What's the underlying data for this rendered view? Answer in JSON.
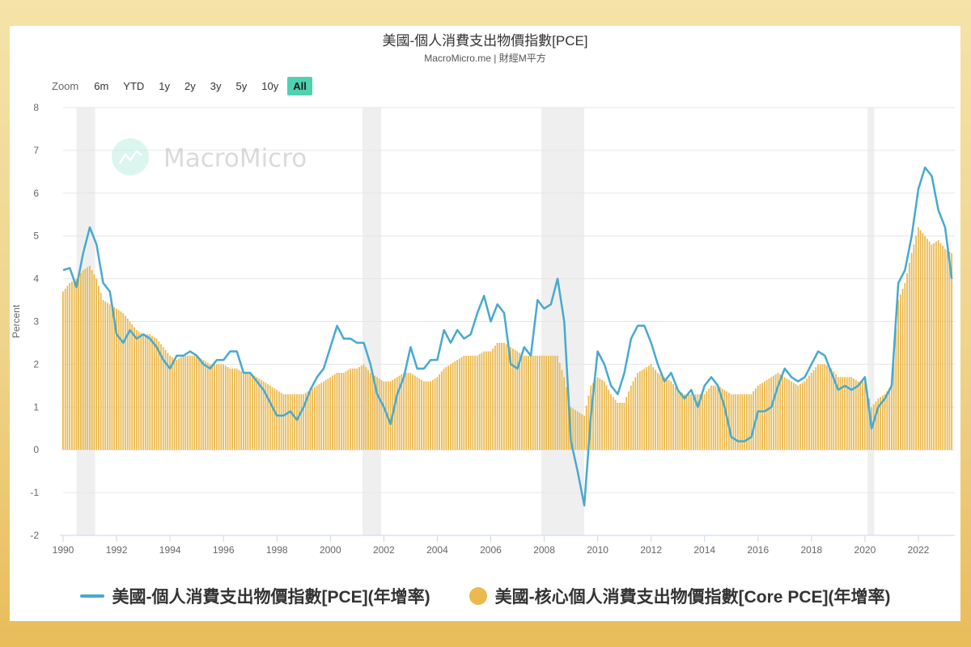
{
  "header": {
    "title": "美國-個人消費支出物價指數[PCE]",
    "subtitle": "MacroMicro.me | 財經M平方"
  },
  "zoom": {
    "label": "Zoom",
    "buttons": [
      "6m",
      "YTD",
      "1y",
      "2y",
      "3y",
      "5y",
      "10y",
      "All"
    ],
    "active": "All"
  },
  "watermark": {
    "text": "MacroMicro",
    "icon": "macromicro-logo-icon"
  },
  "legend": {
    "items": [
      {
        "label": "美國-個人消費支出物價指數[PCE](年增率)",
        "symbol": "line",
        "color": "#47a9cf"
      },
      {
        "label": "美國-核心個人消費支出物價指數[Core PCE](年增率)",
        "symbol": "circle",
        "color": "#ebb94d"
      }
    ]
  },
  "colors": {
    "pce_line": "#47a9cf",
    "core_bar": "#ebb94d",
    "recession_band": "#efefef",
    "grid": "#e6e6e6",
    "zoom_active": "#4fd1b2"
  },
  "chart_data": {
    "type": "bar+line",
    "title": "美國-個人消費支出物價指數[PCE]",
    "subtitle": "MacroMicro.me | 財經M平方",
    "xlabel": "",
    "ylabel": "Percent",
    "ylim": [
      -2,
      8
    ],
    "yticks": [
      -2,
      -1,
      0,
      1,
      2,
      3,
      4,
      5,
      6,
      7,
      8
    ],
    "xlim": [
      1989.9,
      2023.4
    ],
    "xticks": [
      1990,
      1992,
      1994,
      1996,
      1998,
      2000,
      2002,
      2004,
      2006,
      2008,
      2010,
      2012,
      2014,
      2016,
      2018,
      2020,
      2022
    ],
    "grid": true,
    "legend_position": "bottom",
    "recessions": [
      [
        1990.5,
        1991.2
      ],
      [
        2001.2,
        2001.9
      ],
      [
        2007.9,
        2009.5
      ],
      [
        2020.1,
        2020.35
      ]
    ],
    "x": [
      1990.0,
      1990.25,
      1990.5,
      1990.75,
      1991.0,
      1991.25,
      1991.5,
      1991.75,
      1992.0,
      1992.25,
      1992.5,
      1992.75,
      1993.0,
      1993.25,
      1993.5,
      1993.75,
      1994.0,
      1994.25,
      1994.5,
      1994.75,
      1995.0,
      1995.25,
      1995.5,
      1995.75,
      1996.0,
      1996.25,
      1996.5,
      1996.75,
      1997.0,
      1997.25,
      1997.5,
      1997.75,
      1998.0,
      1998.25,
      1998.5,
      1998.75,
      1999.0,
      1999.25,
      1999.5,
      1999.75,
      2000.0,
      2000.25,
      2000.5,
      2000.75,
      2001.0,
      2001.25,
      2001.5,
      2001.75,
      2002.0,
      2002.25,
      2002.5,
      2002.75,
      2003.0,
      2003.25,
      2003.5,
      2003.75,
      2004.0,
      2004.25,
      2004.5,
      2004.75,
      2005.0,
      2005.25,
      2005.5,
      2005.75,
      2006.0,
      2006.25,
      2006.5,
      2006.75,
      2007.0,
      2007.25,
      2007.5,
      2007.75,
      2008.0,
      2008.25,
      2008.5,
      2008.75,
      2009.0,
      2009.25,
      2009.5,
      2009.75,
      2010.0,
      2010.25,
      2010.5,
      2010.75,
      2011.0,
      2011.25,
      2011.5,
      2011.75,
      2012.0,
      2012.25,
      2012.5,
      2012.75,
      2013.0,
      2013.25,
      2013.5,
      2013.75,
      2014.0,
      2014.25,
      2014.5,
      2014.75,
      2015.0,
      2015.25,
      2015.5,
      2015.75,
      2016.0,
      2016.25,
      2016.5,
      2016.75,
      2017.0,
      2017.25,
      2017.5,
      2017.75,
      2018.0,
      2018.25,
      2018.5,
      2018.75,
      2019.0,
      2019.25,
      2019.5,
      2019.75,
      2020.0,
      2020.25,
      2020.5,
      2020.75,
      2021.0,
      2021.25,
      2021.5,
      2021.75,
      2022.0,
      2022.25,
      2022.5,
      2022.75,
      2023.0,
      2023.25
    ],
    "series": [
      {
        "name": "美國-個人消費支出物價指數[PCE](年增率)",
        "type": "line",
        "values": [
          4.2,
          4.25,
          3.8,
          4.6,
          5.2,
          4.8,
          3.9,
          3.7,
          2.7,
          2.5,
          2.8,
          2.6,
          2.7,
          2.6,
          2.4,
          2.1,
          1.9,
          2.2,
          2.2,
          2.3,
          2.2,
          2.0,
          1.9,
          2.1,
          2.1,
          2.3,
          2.3,
          1.8,
          1.8,
          1.6,
          1.4,
          1.1,
          0.8,
          0.8,
          0.9,
          0.7,
          1.0,
          1.4,
          1.7,
          1.9,
          2.4,
          2.9,
          2.6,
          2.6,
          2.5,
          2.5,
          2.0,
          1.3,
          1.0,
          0.6,
          1.3,
          1.7,
          2.4,
          1.9,
          1.9,
          2.1,
          2.1,
          2.8,
          2.5,
          2.8,
          2.6,
          2.7,
          3.2,
          3.6,
          3.0,
          3.4,
          3.2,
          2.0,
          1.9,
          2.4,
          2.2,
          3.5,
          3.3,
          3.4,
          4.0,
          3.0,
          0.2,
          -0.5,
          -1.3,
          0.8,
          2.3,
          2.0,
          1.5,
          1.3,
          1.8,
          2.6,
          2.9,
          2.9,
          2.5,
          2.0,
          1.6,
          1.8,
          1.4,
          1.2,
          1.4,
          1.0,
          1.5,
          1.7,
          1.5,
          1.0,
          0.3,
          0.2,
          0.2,
          0.3,
          0.9,
          0.9,
          1.0,
          1.5,
          1.9,
          1.7,
          1.6,
          1.7,
          2.0,
          2.3,
          2.2,
          1.8,
          1.4,
          1.5,
          1.4,
          1.5,
          1.7,
          0.5,
          1.0,
          1.2,
          1.5,
          3.9,
          4.2,
          5.0,
          6.1,
          6.6,
          6.4,
          5.6,
          5.2,
          4.0
        ]
      },
      {
        "name": "美國-核心個人消費支出物價指數[Core PCE](年增率)",
        "type": "bar",
        "values": [
          3.7,
          3.9,
          4.0,
          4.2,
          4.3,
          4.0,
          3.5,
          3.4,
          3.3,
          3.2,
          3.0,
          2.8,
          2.7,
          2.7,
          2.6,
          2.4,
          2.2,
          2.1,
          2.2,
          2.2,
          2.2,
          2.1,
          2.0,
          2.0,
          2.0,
          1.9,
          1.9,
          1.8,
          1.8,
          1.7,
          1.6,
          1.5,
          1.4,
          1.3,
          1.3,
          1.3,
          1.3,
          1.4,
          1.5,
          1.6,
          1.7,
          1.8,
          1.8,
          1.9,
          1.9,
          2.0,
          1.8,
          1.7,
          1.6,
          1.6,
          1.7,
          1.8,
          1.8,
          1.7,
          1.6,
          1.6,
          1.7,
          1.9,
          2.0,
          2.1,
          2.2,
          2.2,
          2.2,
          2.3,
          2.3,
          2.5,
          2.5,
          2.4,
          2.3,
          2.2,
          2.2,
          2.2,
          2.2,
          2.2,
          2.2,
          1.7,
          1.0,
          0.9,
          0.8,
          1.5,
          1.7,
          1.6,
          1.3,
          1.1,
          1.1,
          1.5,
          1.8,
          1.9,
          2.0,
          1.8,
          1.7,
          1.6,
          1.4,
          1.3,
          1.3,
          1.3,
          1.3,
          1.5,
          1.5,
          1.4,
          1.3,
          1.3,
          1.3,
          1.3,
          1.5,
          1.6,
          1.7,
          1.8,
          1.7,
          1.6,
          1.5,
          1.6,
          1.8,
          2.0,
          2.0,
          1.9,
          1.7,
          1.7,
          1.7,
          1.6,
          1.6,
          1.0,
          1.2,
          1.3,
          1.5,
          3.5,
          3.9,
          4.6,
          5.2,
          5.0,
          4.8,
          4.9,
          4.7,
          4.6
        ]
      }
    ]
  }
}
